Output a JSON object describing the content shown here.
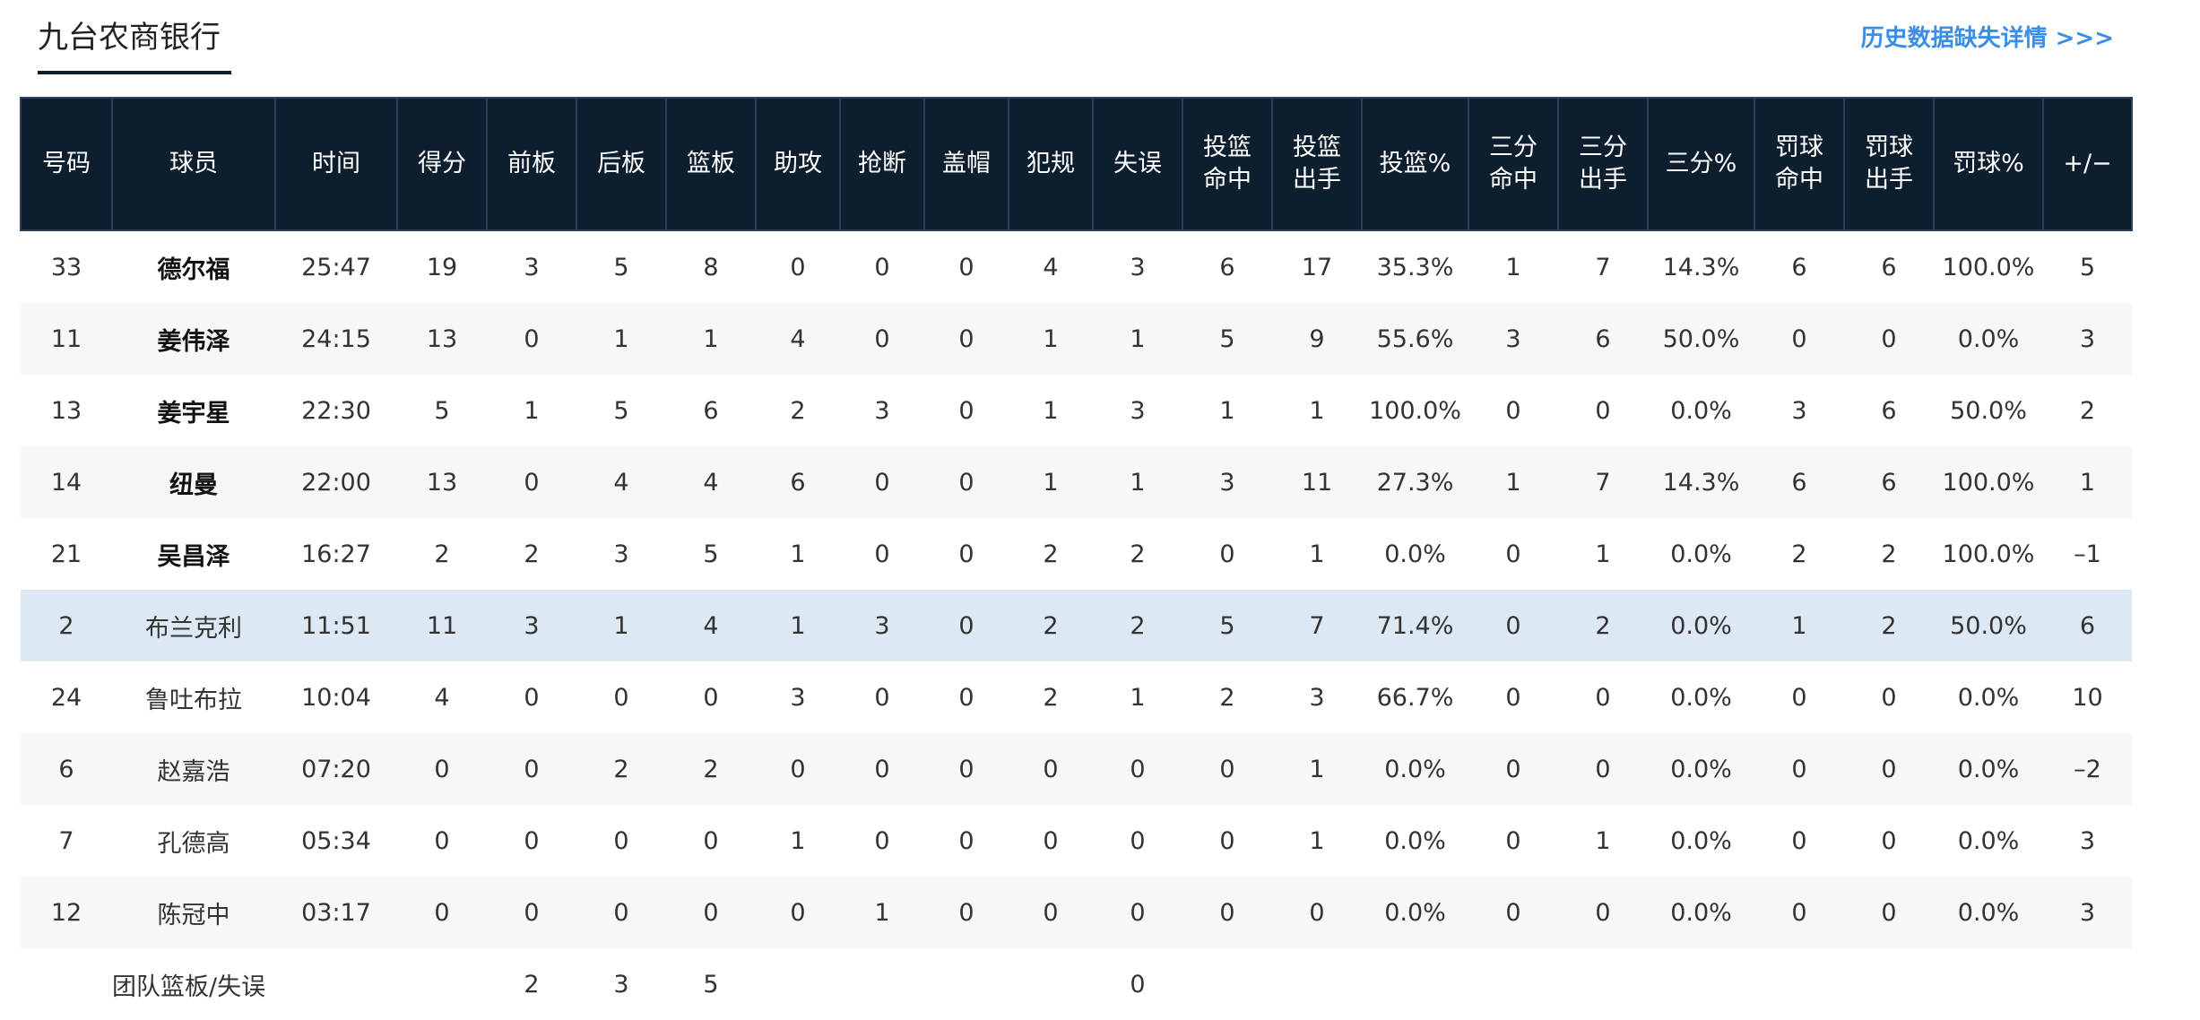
{
  "header": {
    "title": "九台农商银行",
    "link": "历史数据缺失详情 >>>"
  },
  "table": {
    "columns": [
      "号码",
      "球员",
      "时间",
      "得分",
      "前板",
      "后板",
      "篮板",
      "助攻",
      "抢断",
      "盖帽",
      "犯规",
      "失误",
      "投篮\n命中",
      "投篮\n出手",
      "投篮%",
      "三分\n命中",
      "三分\n出手",
      "三分%",
      "罚球\n命中",
      "罚球\n出手",
      "罚球%",
      "+/−"
    ],
    "rows": [
      [
        "33",
        "德尔福",
        "25:47",
        "19",
        "3",
        "5",
        "8",
        "0",
        "0",
        "0",
        "4",
        "3",
        "6",
        "17",
        "35.3%",
        "1",
        "7",
        "14.3%",
        "6",
        "6",
        "100.0%",
        "5"
      ],
      [
        "11",
        "姜伟泽",
        "24:15",
        "13",
        "0",
        "1",
        "1",
        "4",
        "0",
        "0",
        "1",
        "1",
        "5",
        "9",
        "55.6%",
        "3",
        "6",
        "50.0%",
        "0",
        "0",
        "0.0%",
        "3"
      ],
      [
        "13",
        "姜宇星",
        "22:30",
        "5",
        "1",
        "5",
        "6",
        "2",
        "3",
        "0",
        "1",
        "3",
        "1",
        "1",
        "100.0%",
        "0",
        "0",
        "0.0%",
        "3",
        "6",
        "50.0%",
        "2"
      ],
      [
        "14",
        "纽曼",
        "22:00",
        "13",
        "0",
        "4",
        "4",
        "6",
        "0",
        "0",
        "1",
        "1",
        "3",
        "11",
        "27.3%",
        "1",
        "7",
        "14.3%",
        "6",
        "6",
        "100.0%",
        "1"
      ],
      [
        "21",
        "吴昌泽",
        "16:27",
        "2",
        "2",
        "3",
        "5",
        "1",
        "0",
        "0",
        "2",
        "2",
        "0",
        "1",
        "0.0%",
        "0",
        "1",
        "0.0%",
        "2",
        "2",
        "100.0%",
        "–1"
      ],
      [
        "2",
        "布兰克利",
        "11:51",
        "11",
        "3",
        "1",
        "4",
        "1",
        "3",
        "0",
        "2",
        "2",
        "5",
        "7",
        "71.4%",
        "0",
        "2",
        "0.0%",
        "1",
        "2",
        "50.0%",
        "6"
      ],
      [
        "24",
        "鲁吐布拉",
        "10:04",
        "4",
        "0",
        "0",
        "0",
        "3",
        "0",
        "0",
        "2",
        "1",
        "2",
        "3",
        "66.7%",
        "0",
        "0",
        "0.0%",
        "0",
        "0",
        "0.0%",
        "10"
      ],
      [
        "6",
        "赵嘉浩",
        "07:20",
        "0",
        "0",
        "2",
        "2",
        "0",
        "0",
        "0",
        "0",
        "0",
        "0",
        "1",
        "0.0%",
        "0",
        "0",
        "0.0%",
        "0",
        "0",
        "0.0%",
        "–2"
      ],
      [
        "7",
        "孔德高",
        "05:34",
        "0",
        "0",
        "0",
        "0",
        "1",
        "0",
        "0",
        "0",
        "0",
        "0",
        "1",
        "0.0%",
        "0",
        "1",
        "0.0%",
        "0",
        "0",
        "0.0%",
        "3"
      ],
      [
        "12",
        "陈冠中",
        "03:17",
        "0",
        "0",
        "0",
        "0",
        "0",
        "1",
        "0",
        "0",
        "0",
        "0",
        "0",
        "0.0%",
        "0",
        "0",
        "0.0%",
        "0",
        "0",
        "0.0%",
        "3"
      ]
    ],
    "team_row": {
      "label": "团队篮板/失误",
      "前板": "2",
      "后板": "3",
      "篮板": "5",
      "失误": "0"
    }
  }
}
